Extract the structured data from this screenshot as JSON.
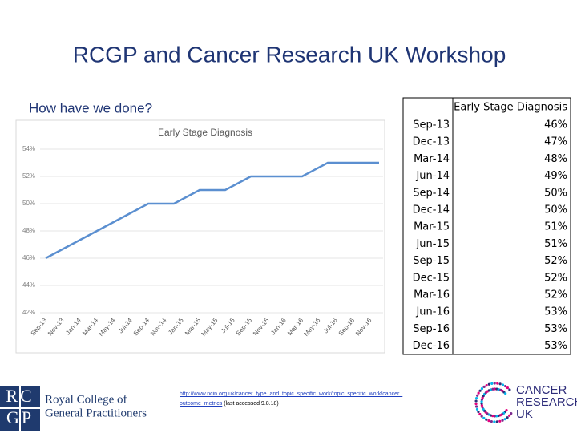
{
  "slide": {
    "title": "RCGP and Cancer Research UK Workshop",
    "subtitle": "How have we done?",
    "table": {
      "header": "Early Stage Diagnosis",
      "rows": [
        [
          "Sep-13",
          "46%"
        ],
        [
          "Dec-13",
          "47%"
        ],
        [
          "Mar-14",
          "48%"
        ],
        [
          "Jun-14",
          "49%"
        ],
        [
          "Sep-14",
          "50%"
        ],
        [
          "Dec-14",
          "50%"
        ],
        [
          "Mar-15",
          "51%"
        ],
        [
          "Jun-15",
          "51%"
        ],
        [
          "Sep-15",
          "52%"
        ],
        [
          "Dec-15",
          "52%"
        ],
        [
          "Mar-16",
          "52%"
        ],
        [
          "Jun-16",
          "53%"
        ],
        [
          "Sep-16",
          "53%"
        ],
        [
          "Dec-16",
          "53%"
        ]
      ]
    },
    "link": "http://www.ncin.org.uk/cancer_type_and_topic_specific_work/topic_specific_work/cancer_outcome_metrics",
    "link_note": "(last accessed 9.8.18)",
    "logo_left": {
      "initials_top": "RC",
      "initials_bottom": "GP",
      "line1": "Royal College of",
      "line2": "General Practitioners"
    },
    "logo_right": {
      "line1": "CANCER",
      "line2": "RESEARCH",
      "line3": "UK"
    }
  },
  "chart_data": {
    "type": "line",
    "title": "Early Stage Diagnosis",
    "x": [
      "Sep-13",
      "Dec-13",
      "Mar-14",
      "Jun-14",
      "Sep-14",
      "Dec-14",
      "Mar-15",
      "Jun-15",
      "Sep-15",
      "Dec-15",
      "Mar-16",
      "Jun-16",
      "Sep-16",
      "Dec-16"
    ],
    "series": [
      {
        "name": "Early Stage Diagnosis",
        "color": "#5b8fd0",
        "values": [
          46,
          47,
          48,
          49,
          50,
          50,
          51,
          51,
          52,
          52,
          52,
          53,
          53,
          53
        ]
      }
    ],
    "xticks": [
      "Sep-13",
      "Nov-13",
      "Jan-14",
      "Mar-14",
      "May-14",
      "Jul-14",
      "Sep-14",
      "Nov-14",
      "Jan-15",
      "Mar-15",
      "May-15",
      "Jul-15",
      "Sep-15",
      "Nov-15",
      "Jan-16",
      "Mar-16",
      "May-16",
      "Jul-16",
      "Sep-16",
      "Nov-16"
    ],
    "ylim": [
      42,
      54
    ],
    "yticks": [
      {
        "value": 42,
        "label": "42%"
      },
      {
        "value": 44,
        "label": "44%"
      },
      {
        "value": 46,
        "label": "46%"
      },
      {
        "value": 48,
        "label": "48%"
      },
      {
        "value": 50,
        "label": "50%"
      },
      {
        "value": 52,
        "label": "52%"
      },
      {
        "value": 54,
        "label": "54%"
      }
    ],
    "grid": true
  }
}
